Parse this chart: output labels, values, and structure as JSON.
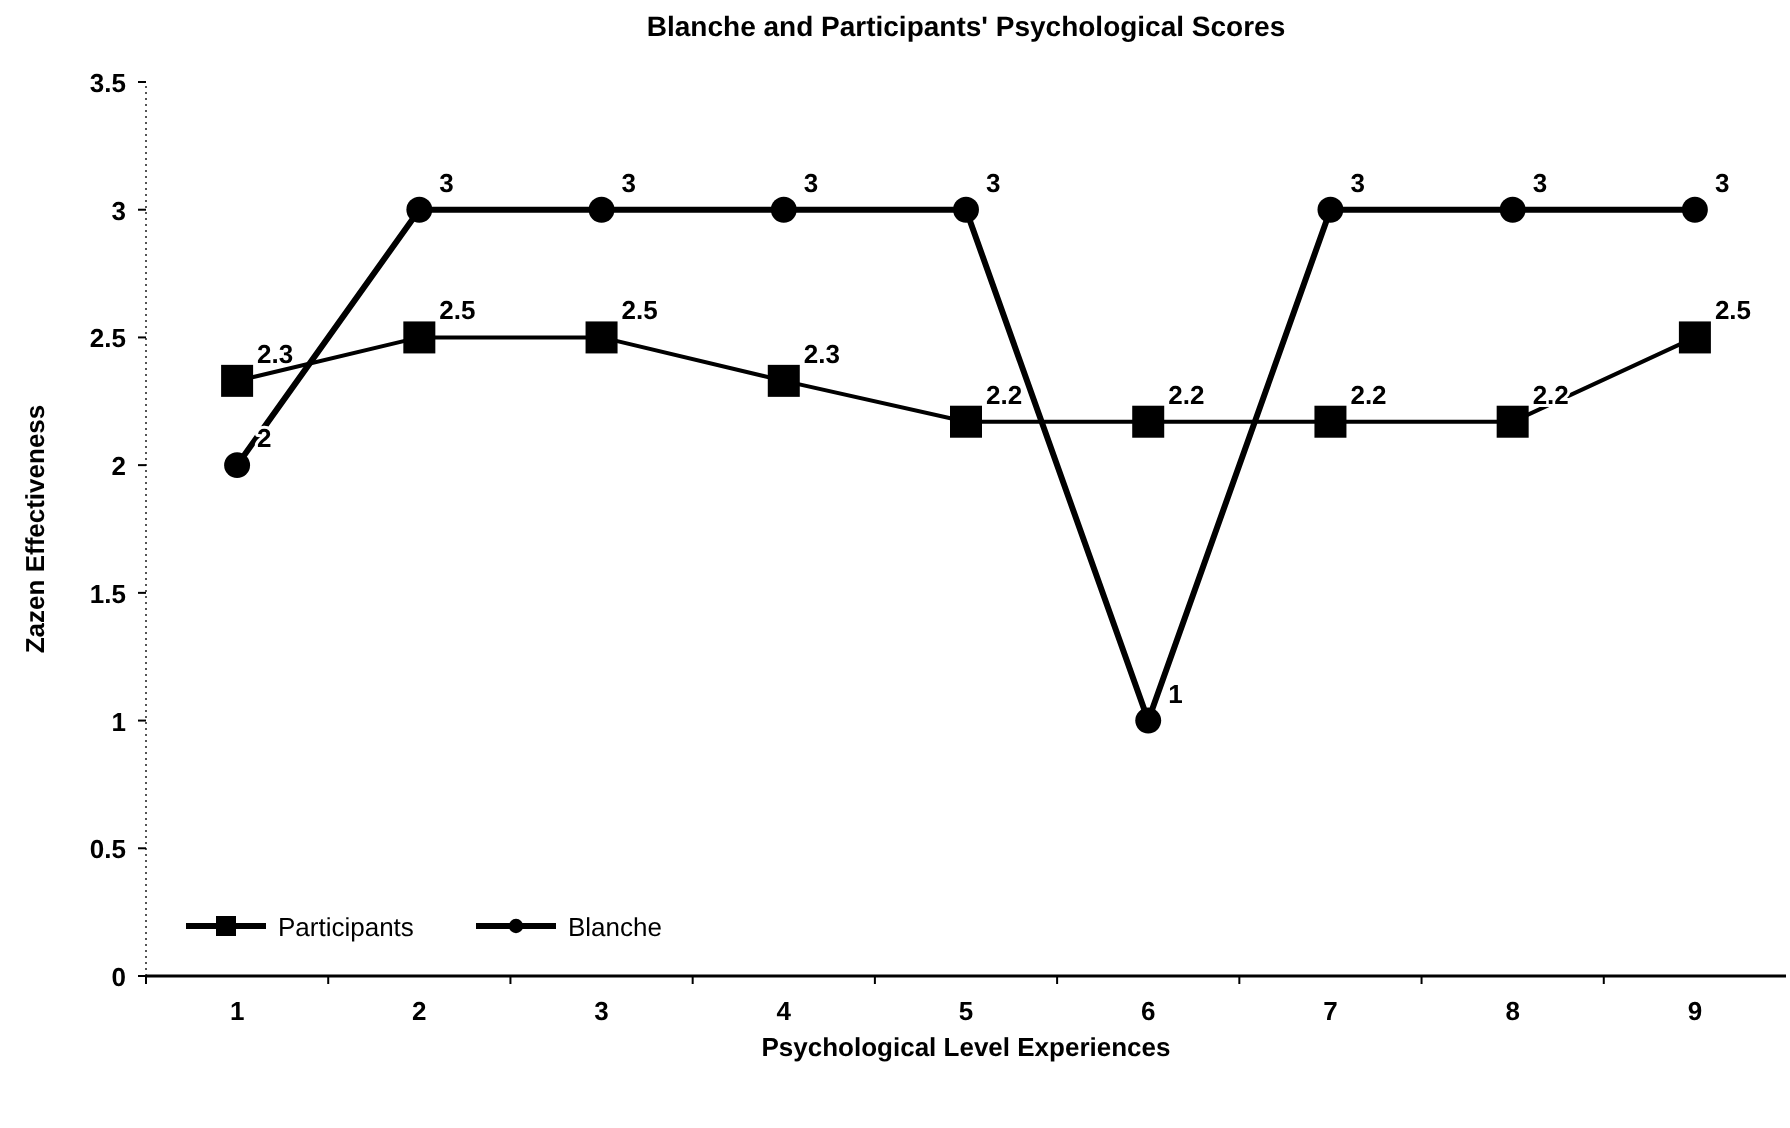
{
  "chart_data": {
    "type": "line",
    "title": "Blanche and Participants' Psychological Scores",
    "xlabel": "Psychological Level Experiences",
    "ylabel": "Zazen Effectiveness",
    "categories": [
      "1",
      "2",
      "3",
      "4",
      "5",
      "6",
      "7",
      "8",
      "9"
    ],
    "series": [
      {
        "name": "Participants",
        "color": "#000000",
        "marker": "square",
        "values": [
          2.33,
          2.5,
          2.5,
          2.33,
          2.17,
          2.17,
          2.17,
          2.17,
          2.5
        ],
        "value_labels": [
          "2.3",
          "2.5",
          "2.5",
          "2.3",
          "2.2",
          "2.2",
          "2.2",
          "2.2",
          "2.5"
        ]
      },
      {
        "name": "Blanche",
        "color": "#000000",
        "marker": "circle",
        "values": [
          2,
          3,
          3,
          3,
          3,
          1,
          3,
          3,
          3
        ],
        "value_labels": [
          "2",
          "3",
          "3",
          "3",
          "3",
          "1",
          "3",
          "3",
          "3"
        ]
      }
    ],
    "ylim": [
      0,
      3.5
    ],
    "yticks": [
      0,
      0.5,
      1,
      1.5,
      2,
      2.5,
      3,
      3.5
    ],
    "grid": false,
    "legend": "bottom left",
    "line_style": "solid"
  }
}
